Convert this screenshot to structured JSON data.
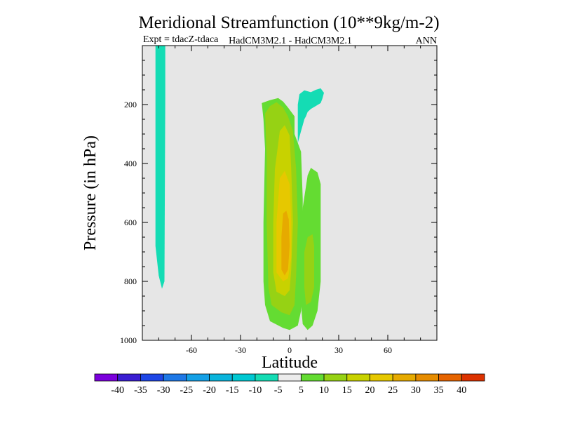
{
  "chart_data": {
    "type": "heatmap",
    "subtype": "filled-contour",
    "title": "Meridional Streamfunction (10**9kg/m-2)",
    "subtitle_left": "Expt = tdacZ-tdaca",
    "subtitle_center": "HadCM3M2.1 - HadCM3M2.1",
    "subtitle_right": "ANN",
    "xlabel": "Latitude",
    "ylabel": "Pressure (in hPa)",
    "xlim": [
      -90,
      90
    ],
    "ylim": [
      1000,
      0
    ],
    "xticks": [
      -60,
      -30,
      0,
      30,
      60
    ],
    "xtick_labels": [
      "-60",
      "-30",
      "0",
      "30",
      "60"
    ],
    "yticks": [
      200,
      400,
      600,
      800,
      1000
    ],
    "ytick_labels": [
      "200",
      "400",
      "600",
      "800",
      "1000"
    ],
    "background_color": "#e6e6e6",
    "colorbar": {
      "levels": [
        -40,
        -35,
        -30,
        -25,
        -20,
        -15,
        -10,
        -5,
        5,
        10,
        15,
        20,
        25,
        30,
        35,
        40
      ],
      "labels": [
        "-40",
        "-35",
        "-30",
        "-25",
        "-20",
        "-15",
        "-10",
        "-5",
        "5",
        "10",
        "15",
        "20",
        "25",
        "30",
        "35",
        "40"
      ],
      "colors": [
        "#7b00dc",
        "#3a1ed2",
        "#1e46e6",
        "#1e78e6",
        "#14a0e6",
        "#0ab4dc",
        "#00c8d2",
        "#14dcb4",
        "#ececec",
        "#64dc32",
        "#96d214",
        "#c8d200",
        "#e6c800",
        "#e6aa00",
        "#e68c00",
        "#e66400",
        "#dc3200"
      ]
    },
    "regions": [
      {
        "name": "cell-neg-left",
        "level_range": [
          -10,
          -5
        ],
        "color": "#14dcb4",
        "outline": [
          [
            -82,
            0
          ],
          [
            -76,
            0
          ],
          [
            -76,
            170
          ],
          [
            -76.5,
            800
          ],
          [
            -78,
            825
          ],
          [
            -80,
            780
          ],
          [
            -82,
            680
          ]
        ]
      },
      {
        "name": "cell-pos-upper-right",
        "level_range": [
          -10,
          -5
        ],
        "color": "#14dcb4",
        "outline": [
          [
            5,
            200
          ],
          [
            6,
            165
          ],
          [
            9,
            152
          ],
          [
            13,
            158
          ],
          [
            16,
            150
          ],
          [
            19,
            145
          ],
          [
            21,
            160
          ],
          [
            20,
            180
          ],
          [
            19,
            195
          ],
          [
            16,
            205
          ],
          [
            13,
            215
          ],
          [
            11,
            225
          ],
          [
            10,
            240
          ],
          [
            9,
            250
          ],
          [
            8,
            270
          ],
          [
            7,
            290
          ],
          [
            5,
            330
          ],
          [
            5,
            290
          ]
        ]
      },
      {
        "name": "cell-pos-main-5",
        "level_range": [
          5,
          10
        ],
        "color": "#64dc32",
        "outline": [
          [
            -17,
            195
          ],
          [
            -12,
            185
          ],
          [
            -7,
            178
          ],
          [
            -4,
            190
          ],
          [
            -1,
            210
          ],
          [
            3,
            240
          ],
          [
            3,
            300
          ],
          [
            7,
            360
          ],
          [
            8,
            520
          ],
          [
            8,
            750
          ],
          [
            7,
            900
          ],
          [
            5,
            950
          ],
          [
            0,
            965
          ],
          [
            -4,
            958
          ],
          [
            -12,
            935
          ],
          [
            -15,
            880
          ],
          [
            -16,
            800
          ],
          [
            -16,
            600
          ],
          [
            -15,
            350
          ],
          [
            -16,
            250
          ]
        ]
      },
      {
        "name": "cell-pos-main-10",
        "level_range": [
          10,
          15
        ],
        "color": "#96d214",
        "outline": [
          [
            -15,
            230
          ],
          [
            -12,
            205
          ],
          [
            -8,
            192
          ],
          [
            -4,
            210
          ],
          [
            -1,
            240
          ],
          [
            2,
            290
          ],
          [
            4,
            420
          ],
          [
            5,
            600
          ],
          [
            4,
            780
          ],
          [
            3,
            880
          ],
          [
            0,
            915
          ],
          [
            -5,
            905
          ],
          [
            -11,
            880
          ],
          [
            -13,
            820
          ],
          [
            -14,
            600
          ],
          [
            -14,
            380
          ]
        ]
      },
      {
        "name": "cell-pos-main-15",
        "level_range": [
          15,
          20
        ],
        "color": "#c8d200",
        "outline": [
          [
            -6,
            290
          ],
          [
            -3,
            270
          ],
          [
            0,
            305
          ],
          [
            1,
            420
          ],
          [
            2,
            600
          ],
          [
            1,
            760
          ],
          [
            0,
            830
          ],
          [
            -3,
            850
          ],
          [
            -8,
            835
          ],
          [
            -10,
            770
          ],
          [
            -10,
            600
          ],
          [
            -9,
            420
          ]
        ]
      },
      {
        "name": "cell-pos-main-20",
        "level_range": [
          20,
          25
        ],
        "color": "#e6c800",
        "outline": [
          [
            -6,
            450
          ],
          [
            -3,
            425
          ],
          [
            0,
            470
          ],
          [
            1,
            600
          ],
          [
            1,
            720
          ],
          [
            -1,
            790
          ],
          [
            -4,
            800
          ],
          [
            -8,
            770
          ],
          [
            -8,
            600
          ]
        ]
      },
      {
        "name": "cell-pos-main-25",
        "level_range": [
          25,
          30
        ],
        "color": "#e6aa00",
        "outline": [
          [
            -4,
            570
          ],
          [
            -2,
            560
          ],
          [
            -0.5,
            590
          ],
          [
            0,
            680
          ],
          [
            -1,
            760
          ],
          [
            -3,
            780
          ],
          [
            -5,
            760
          ],
          [
            -5,
            650
          ]
        ]
      },
      {
        "name": "cell-pos-second-5",
        "level_range": [
          5,
          10
        ],
        "color": "#64dc32",
        "outline": [
          [
            11,
            440
          ],
          [
            13,
            415
          ],
          [
            17,
            430
          ],
          [
            19,
            470
          ],
          [
            19,
            800
          ],
          [
            17,
            900
          ],
          [
            14,
            950
          ],
          [
            11,
            965
          ],
          [
            8,
            945
          ],
          [
            7,
            880
          ],
          [
            7,
            700
          ],
          [
            8,
            550
          ]
        ]
      },
      {
        "name": "cell-pos-second-10",
        "level_range": [
          10,
          15
        ],
        "color": "#96d214",
        "outline": [
          [
            11,
            650
          ],
          [
            14,
            640
          ],
          [
            15,
            680
          ],
          [
            15,
            820
          ],
          [
            13,
            870
          ],
          [
            10,
            880
          ],
          [
            9,
            820
          ],
          [
            9,
            700
          ]
        ]
      }
    ]
  }
}
